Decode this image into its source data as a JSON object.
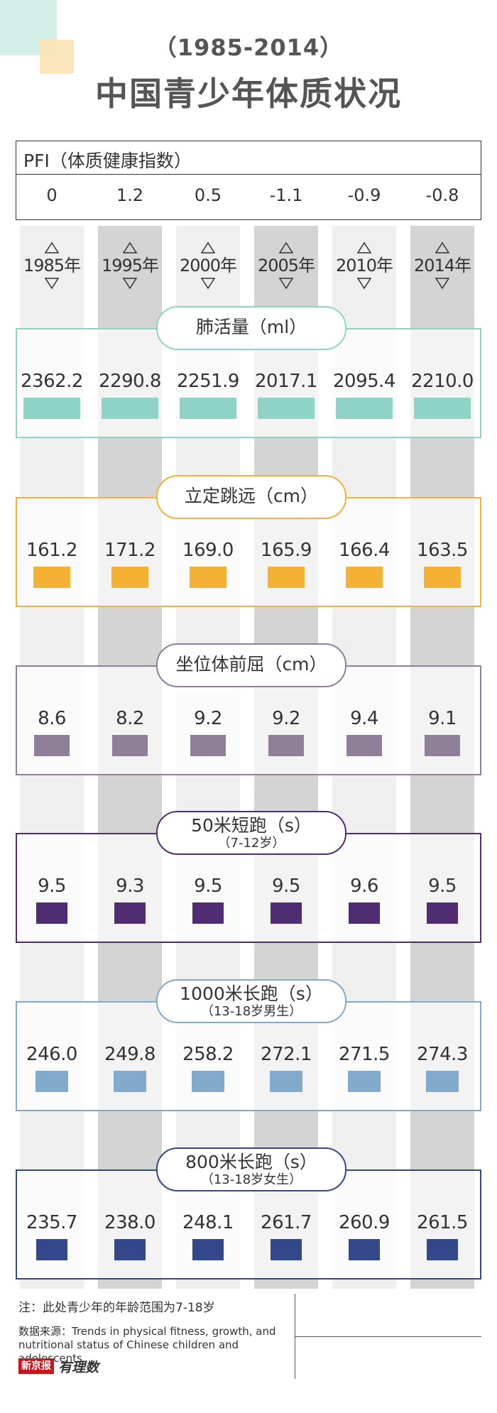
{
  "header": {
    "year_range": "（1985-2014）",
    "title": "中国青少年体质状况"
  },
  "colors": {
    "deco_teal": "#d3eee7",
    "deco_yellow": "#fbe3b5",
    "column_light": "#efefef",
    "column_dark": "#d4d4d4"
  },
  "pfi": {
    "label": "PFI（体质健康指数）",
    "values": [
      "0",
      "1.2",
      "0.5",
      "-1.1",
      "-0.9",
      "-0.8"
    ]
  },
  "years": [
    "1985年",
    "1995年",
    "2000年",
    "2005年",
    "2010年",
    "2014年"
  ],
  "chart_data": {
    "type": "table",
    "categories": [
      "1985年",
      "1995年",
      "2000年",
      "2005年",
      "2010年",
      "2014年"
    ],
    "series": [
      {
        "name": "肺活量（ml）",
        "sub": "",
        "color": "#8fd3c6",
        "values": [
          2362.2,
          2290.8,
          2251.9,
          2017.1,
          2095.4,
          2210.0
        ],
        "labels": [
          "2362.2",
          "2290.8",
          "2251.9",
          "2017.1",
          "2095.4",
          "2210.0"
        ]
      },
      {
        "name": "立定跳远（cm）",
        "sub": "",
        "color": "#f5b133",
        "values": [
          161.2,
          171.2,
          169.0,
          165.9,
          166.4,
          163.5
        ],
        "labels": [
          "161.2",
          "171.2",
          "169.0",
          "165.9",
          "166.4",
          "163.5"
        ]
      },
      {
        "name": "坐位体前屈（cm）",
        "sub": "",
        "color": "#8f7f99",
        "values": [
          8.6,
          8.2,
          9.2,
          9.2,
          9.4,
          9.1
        ],
        "labels": [
          "8.6",
          "8.2",
          "9.2",
          "9.2",
          "9.4",
          "9.1"
        ]
      },
      {
        "name": "50米短跑（s）",
        "sub": "（7-12岁）",
        "color": "#502d73",
        "values": [
          9.5,
          9.3,
          9.5,
          9.5,
          9.6,
          9.5
        ],
        "labels": [
          "9.5",
          "9.3",
          "9.5",
          "9.5",
          "9.6",
          "9.5"
        ]
      },
      {
        "name": "1000米长跑（s）",
        "sub": "（13-18岁男生）",
        "color": "#81aacb",
        "values": [
          246.0,
          249.8,
          258.2,
          272.1,
          271.5,
          274.3
        ],
        "labels": [
          "246.0",
          "249.8",
          "258.2",
          "272.1",
          "271.5",
          "274.3"
        ]
      },
      {
        "name": "800米长跑（s）",
        "sub": "（13-18岁女生）",
        "color": "#33488a",
        "values": [
          235.7,
          238.0,
          248.1,
          261.7,
          260.9,
          261.5
        ],
        "labels": [
          "235.7",
          "238.0",
          "248.1",
          "261.7",
          "260.9",
          "261.5"
        ]
      }
    ]
  },
  "footer": {
    "note": "注：此处青少年的年龄范围为7-18岁",
    "source": "数据来源：Trends in physical fitness, growth, and nutritional status of Chinese children and adolescents",
    "logo_left": "新京报",
    "logo_right": "有理数"
  }
}
